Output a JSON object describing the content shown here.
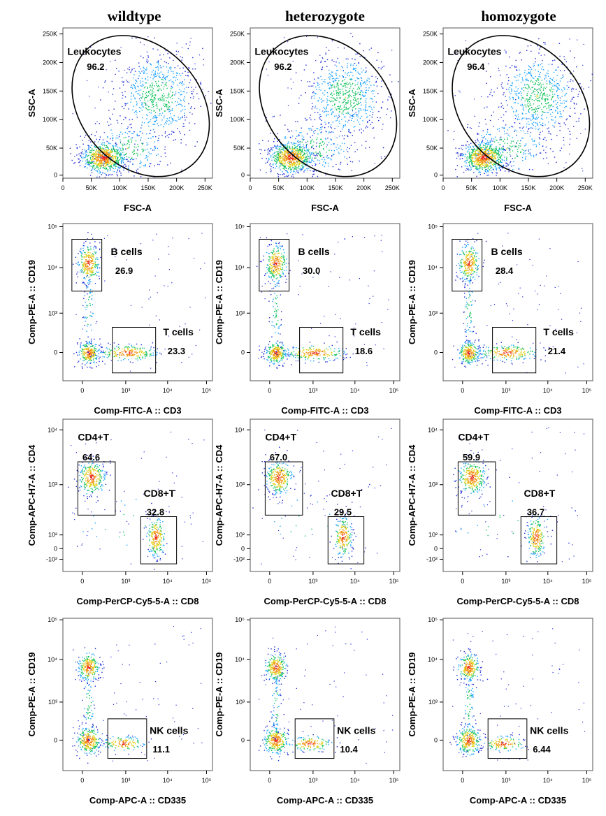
{
  "chart_data": {
    "type": "scatter",
    "columns": [
      "wildtype",
      "heterozygote",
      "homozygote"
    ],
    "rows": [
      {
        "row": "leukocytes",
        "xlabel": "FSC-A",
        "ylabel": "SSC-A",
        "x_ticks": [
          "0",
          "50K",
          "100K",
          "150K",
          "200K",
          "250K"
        ],
        "y_ticks": [
          "0",
          "50K",
          "100K",
          "150K",
          "200K",
          "250K"
        ],
        "gates": [
          {
            "name": "Leukocytes",
            "values": [
              "96.2",
              "96.2",
              "96.4"
            ]
          }
        ]
      },
      {
        "row": "b-t-cells",
        "xlabel": "Comp-FITC-A :: CD3",
        "ylabel": "Comp-PE-A :: CD19",
        "x_ticks": [
          "0",
          "10³",
          "10⁴",
          "10⁵"
        ],
        "y_ticks": [
          "0",
          "10³",
          "10⁴",
          "10⁵"
        ],
        "gates": [
          {
            "name": "B cells",
            "values": [
              "26.9",
              "30.0",
              "28.4"
            ]
          },
          {
            "name": "T cells",
            "values": [
              "23.3",
              "18.6",
              "21.4"
            ]
          }
        ]
      },
      {
        "row": "cd4-cd8",
        "xlabel": "Comp-PerCP-Cy5-5-A :: CD8",
        "ylabel": "Comp-APC-H7-A :: CD4",
        "x_ticks": [
          "0",
          "10³",
          "10⁴",
          "10⁵"
        ],
        "y_ticks": [
          "-10²",
          "0",
          "10²",
          "10³",
          "10⁴"
        ],
        "gates": [
          {
            "name": "CD4+T",
            "values": [
              "64.6",
              "67.0",
              "59.9"
            ]
          },
          {
            "name": "CD8+T",
            "values": [
              "32.8",
              "29.5",
              "36.7"
            ]
          }
        ]
      },
      {
        "row": "nk-cells",
        "xlabel": "Comp-APC-A :: CD335",
        "ylabel": "Comp-PE-A :: CD19",
        "x_ticks": [
          "0",
          "10³",
          "10⁴",
          "10⁵"
        ],
        "y_ticks": [
          "0",
          "10³",
          "10⁴",
          "10⁵"
        ],
        "gates": [
          {
            "name": "NK cells",
            "values": [
              "11.1",
              "10.4",
              "6.44"
            ]
          }
        ]
      }
    ]
  }
}
